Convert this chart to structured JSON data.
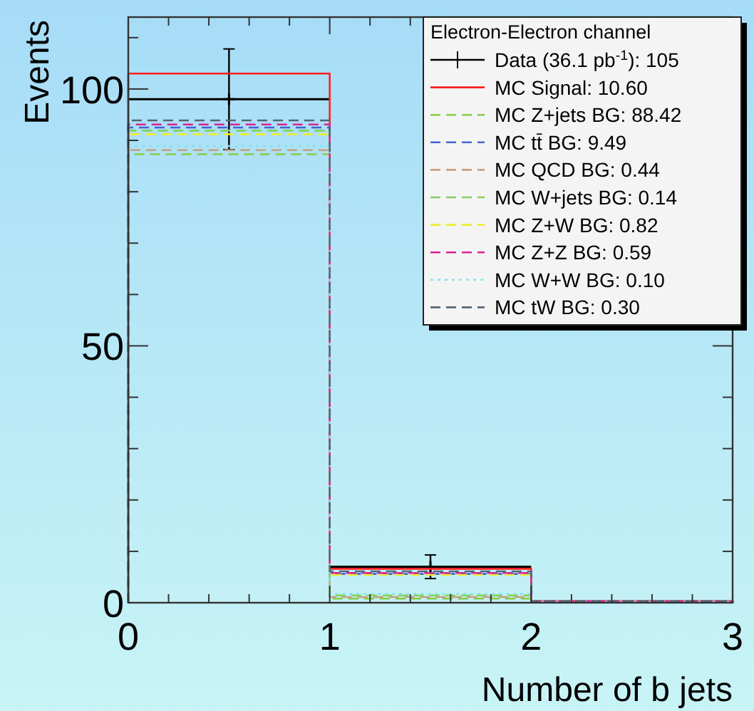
{
  "chart_data": {
    "type": "histogram",
    "xlabel": "Number of b jets",
    "ylabel": "Events",
    "legend_title": "Electron-Electron channel",
    "legend": "top right",
    "grid": false,
    "bins": [
      0,
      1,
      2,
      3
    ],
    "xlim": [
      0,
      3
    ],
    "ylim": [
      0,
      114
    ],
    "xticks": [
      0,
      {
        "value": 0.2,
        "label": null
      },
      {
        "value": 0.4,
        "label": null
      },
      {
        "value": 0.6,
        "label": null
      },
      {
        "value": 0.8,
        "label": null
      },
      1,
      {
        "value": 1.2,
        "label": null
      },
      {
        "value": 1.4,
        "label": null
      },
      {
        "value": 1.6,
        "label": null
      },
      {
        "value": 1.8,
        "label": null
      },
      2,
      {
        "value": 2.2,
        "label": null
      },
      {
        "value": 2.4,
        "label": null
      },
      {
        "value": 2.6,
        "label": null
      },
      {
        "value": 2.8,
        "label": null
      },
      3
    ],
    "yticks": [
      0,
      {
        "value": 10,
        "label": null
      },
      {
        "value": 20,
        "label": null
      },
      {
        "value": 30,
        "label": null
      },
      {
        "value": 40,
        "label": null
      },
      50,
      {
        "value": 60,
        "label": null
      },
      {
        "value": 70,
        "label": null
      },
      {
        "value": 80,
        "label": null
      },
      {
        "value": 90,
        "label": null
      },
      100,
      {
        "value": 110,
        "label": null
      }
    ],
    "series": [
      {
        "name": "Data (36.1 pb$^{-1}$): 105",
        "type": "scatter",
        "marker": "cross",
        "color": "#000000",
        "x": [
          0.5,
          1.5
        ],
        "values": [
          98,
          7
        ],
        "errors": [
          9.8,
          2.3
        ],
        "xerrors": [
          0.5,
          0.5
        ]
      },
      {
        "name": "MC Signal: 10.60",
        "color": "#ff2020",
        "line_style": "solid",
        "values": [
          103,
          6.6,
          0.3
        ]
      },
      {
        "name": "MC Z+jets BG: 88.42",
        "color": "#88cc44",
        "line_style": "dashed",
        "values": [
          87.3,
          0.8,
          0.2
        ]
      },
      {
        "name": "MC tt̄ BG:  9.49",
        "color": "#4466cc",
        "line_style": "dashed",
        "values": [
          92.5,
          5.6,
          0.3
        ]
      },
      {
        "name": "MC QCD BG:  0.44",
        "color": "#c8a080",
        "line_style": "dashed",
        "values": [
          88.1,
          1.1,
          0.2
        ]
      },
      {
        "name": "MC W+jets BG:  0.14",
        "color": "#88d060",
        "line_style": "dashed",
        "values": [
          91.9,
          1.4,
          0.2
        ]
      },
      {
        "name": "MC Z+W BG:  0.82",
        "color": "#eeee30",
        "line_style": "dashed",
        "values": [
          91.2,
          5.4,
          0.3
        ]
      },
      {
        "name": "MC Z+Z BG:  0.59",
        "color": "#dd2299",
        "line_style": "dashed",
        "values": [
          93.1,
          5.8,
          0.3
        ]
      },
      {
        "name": "MC W+W BG:  0.10",
        "color": "#88e0e8",
        "line_style": "dotted",
        "values": [
          88.9,
          1.7,
          0.2
        ]
      },
      {
        "name": "MC tW BG:  0.30",
        "color": "#556677",
        "line_style": "dashed",
        "values": [
          93.9,
          6.1,
          0.3
        ]
      }
    ]
  }
}
